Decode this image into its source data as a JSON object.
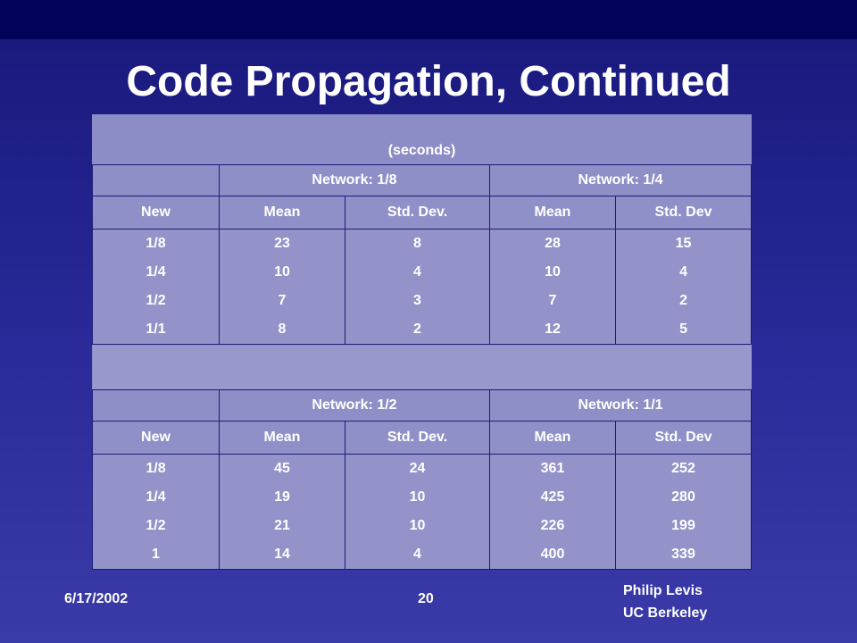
{
  "title": "Code Propagation, Continued",
  "units_caption": "(seconds)",
  "table1": {
    "groups": [
      "Network: 1/8",
      "Network: 1/4"
    ],
    "columns": [
      "New",
      "Mean",
      "Std. Dev.",
      "Mean",
      "Std. Dev"
    ],
    "rows": [
      [
        "1/8",
        "23",
        "8",
        "28",
        "15"
      ],
      [
        "1/4",
        "10",
        "4",
        "10",
        "4"
      ],
      [
        "1/2",
        "7",
        "3",
        "7",
        "2"
      ],
      [
        "1/1",
        "8",
        "2",
        "12",
        "5"
      ]
    ]
  },
  "table2": {
    "groups": [
      "Network: 1/2",
      "Network: 1/1"
    ],
    "columns": [
      "New",
      "Mean",
      "Std. Dev.",
      "Mean",
      "Std. Dev"
    ],
    "rows": [
      [
        "1/8",
        "45",
        "24",
        "361",
        "252"
      ],
      [
        "1/4",
        "19",
        "10",
        "425",
        "280"
      ],
      [
        "1/2",
        "21",
        "10",
        "226",
        "199"
      ],
      [
        "1",
        "14",
        "4",
        "400",
        "339"
      ]
    ]
  },
  "footer": {
    "date": "6/17/2002",
    "page": "20",
    "author": "Philip Levis",
    "affiliation": "UC Berkeley"
  }
}
